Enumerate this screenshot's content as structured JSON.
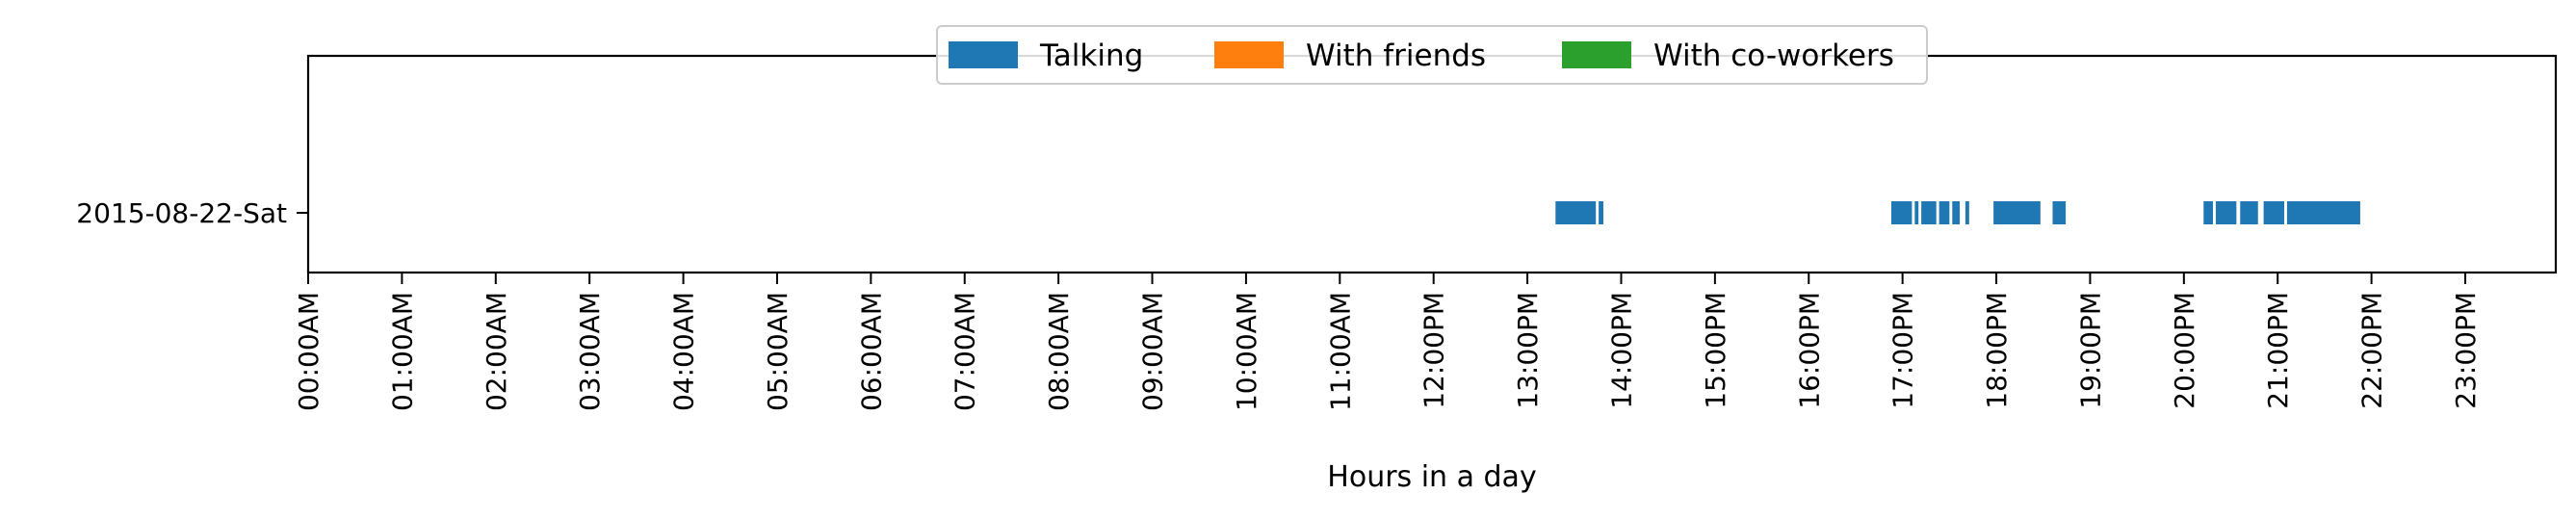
{
  "chart_data": {
    "type": "timeline",
    "title": "",
    "xlabel": "Hours in a day",
    "ylabel": "",
    "xlim": [
      0,
      24
    ],
    "x_ticks": [
      {
        "value": 0,
        "label": "00:00AM"
      },
      {
        "value": 1,
        "label": "01:00AM"
      },
      {
        "value": 2,
        "label": "02:00AM"
      },
      {
        "value": 3,
        "label": "03:00AM"
      },
      {
        "value": 4,
        "label": "04:00AM"
      },
      {
        "value": 5,
        "label": "05:00AM"
      },
      {
        "value": 6,
        "label": "06:00AM"
      },
      {
        "value": 7,
        "label": "07:00AM"
      },
      {
        "value": 8,
        "label": "08:00AM"
      },
      {
        "value": 9,
        "label": "09:00AM"
      },
      {
        "value": 10,
        "label": "10:00AM"
      },
      {
        "value": 11,
        "label": "11:00AM"
      },
      {
        "value": 12,
        "label": "12:00PM"
      },
      {
        "value": 13,
        "label": "13:00PM"
      },
      {
        "value": 14,
        "label": "14:00PM"
      },
      {
        "value": 15,
        "label": "15:00PM"
      },
      {
        "value": 16,
        "label": "16:00PM"
      },
      {
        "value": 17,
        "label": "17:00PM"
      },
      {
        "value": 18,
        "label": "18:00PM"
      },
      {
        "value": 19,
        "label": "19:00PM"
      },
      {
        "value": 20,
        "label": "20:00PM"
      },
      {
        "value": 21,
        "label": "21:00PM"
      },
      {
        "value": 22,
        "label": "22:00PM"
      },
      {
        "value": 23,
        "label": "23:00PM"
      }
    ],
    "categories": [
      "2015-08-22-Sat"
    ],
    "legend": {
      "position": "upper center",
      "ncol": 3
    },
    "grid": false,
    "series": [
      {
        "name": "Talking",
        "color": "#1f77b4",
        "intervals": [
          {
            "day": "2015-08-22-Sat",
            "start": 13.3,
            "end": 13.73
          },
          {
            "day": "2015-08-22-Sat",
            "start": 13.76,
            "end": 13.81
          },
          {
            "day": "2015-08-22-Sat",
            "start": 16.88,
            "end": 17.1
          },
          {
            "day": "2015-08-22-Sat",
            "start": 17.13,
            "end": 17.17
          },
          {
            "day": "2015-08-22-Sat",
            "start": 17.2,
            "end": 17.36
          },
          {
            "day": "2015-08-22-Sat",
            "start": 17.39,
            "end": 17.5
          },
          {
            "day": "2015-08-22-Sat",
            "start": 17.53,
            "end": 17.61
          },
          {
            "day": "2015-08-22-Sat",
            "start": 17.67,
            "end": 17.71
          },
          {
            "day": "2015-08-22-Sat",
            "start": 17.97,
            "end": 18.47
          },
          {
            "day": "2015-08-22-Sat",
            "start": 18.6,
            "end": 18.74
          },
          {
            "day": "2015-08-22-Sat",
            "start": 20.21,
            "end": 20.31
          },
          {
            "day": "2015-08-22-Sat",
            "start": 20.34,
            "end": 20.56
          },
          {
            "day": "2015-08-22-Sat",
            "start": 20.6,
            "end": 20.79
          },
          {
            "day": "2015-08-22-Sat",
            "start": 20.85,
            "end": 21.07
          },
          {
            "day": "2015-08-22-Sat",
            "start": 21.1,
            "end": 21.88
          }
        ]
      },
      {
        "name": "With friends",
        "color": "#ff7f0e",
        "intervals": []
      },
      {
        "name": "With co-workers",
        "color": "#2ca02c",
        "intervals": []
      }
    ]
  }
}
